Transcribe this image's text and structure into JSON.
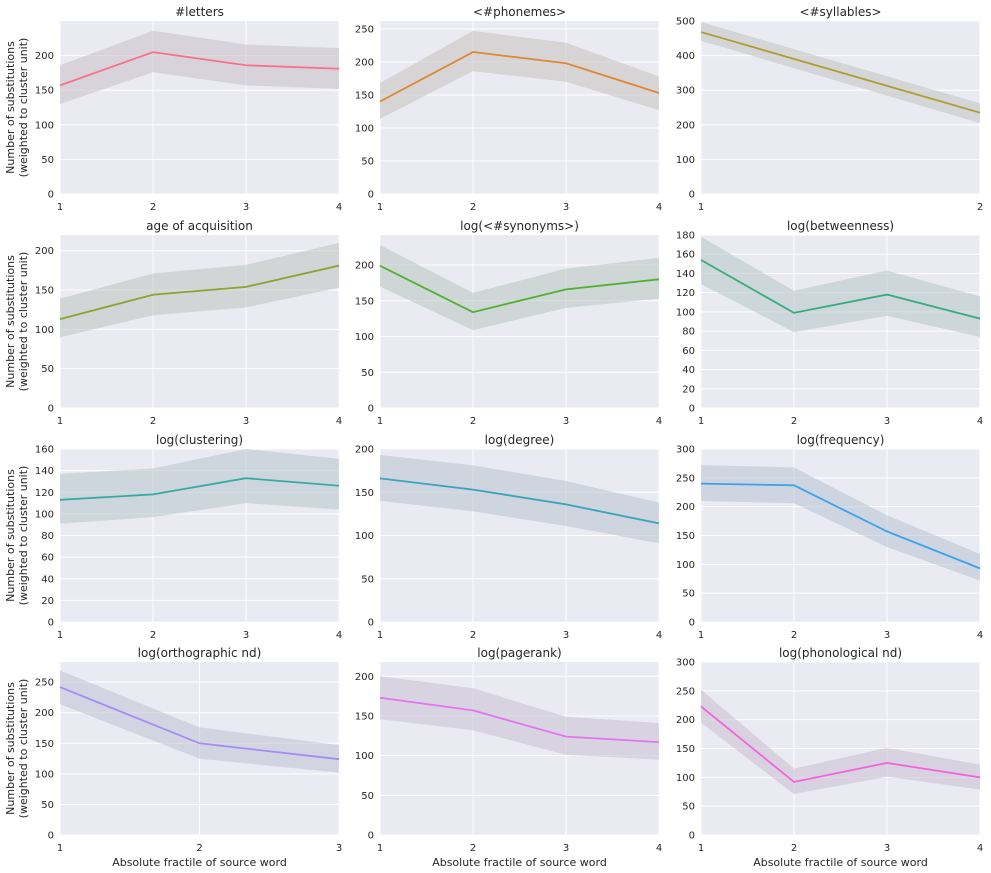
{
  "ylabel_line1": "Number of substitutions",
  "ylabel_line2": "(weighted to cluster unit)",
  "xlabel": "Absolute fractile of source word",
  "colors": {
    "background": "#eaeaf2",
    "grid": "#ffffff",
    "band": "#c9ccd4"
  },
  "chart_data": [
    {
      "type": "line",
      "title": "#letters",
      "color": "#f77189",
      "x": [
        1,
        2,
        3,
        4
      ],
      "y": [
        157,
        205,
        186,
        181
      ],
      "ci_low": [
        130,
        176,
        157,
        152
      ],
      "ci_high": [
        186,
        236,
        216,
        211
      ],
      "ylim": [
        0,
        250
      ],
      "yticks": [
        0,
        50,
        100,
        150,
        200
      ]
    },
    {
      "type": "line",
      "title": "<#phonemes>",
      "color": "#dc8932",
      "x": [
        1,
        2,
        3,
        4
      ],
      "y": [
        140,
        215,
        198,
        153
      ],
      "ci_low": [
        114,
        186,
        170,
        127
      ],
      "ci_high": [
        168,
        247,
        229,
        178
      ],
      "ylim": [
        0,
        262
      ],
      "yticks": [
        0,
        50,
        100,
        150,
        200,
        250
      ]
    },
    {
      "type": "line",
      "title": "<#syllables>",
      "color": "#ae9d31",
      "x": [
        1,
        2
      ],
      "y": [
        468,
        235
      ],
      "ci_low": [
        443,
        205
      ],
      "ci_high": [
        497,
        262
      ],
      "ylim": [
        0,
        500
      ],
      "yticks": [
        0,
        100,
        200,
        300,
        400,
        500
      ]
    },
    {
      "type": "line",
      "title": "age of acquisition",
      "color": "#8ba330",
      "x": [
        1,
        2,
        3,
        4
      ],
      "y": [
        113,
        144,
        154,
        181
      ],
      "ci_low": [
        90,
        118,
        128,
        153
      ],
      "ci_high": [
        139,
        171,
        182,
        210
      ],
      "ylim": [
        0,
        220
      ],
      "yticks": [
        0,
        50,
        100,
        150,
        200
      ]
    },
    {
      "type": "line",
      "title": "log(<#synonyms>)",
      "color": "#50b131",
      "x": [
        1,
        2,
        3,
        4
      ],
      "y": [
        199,
        134,
        166,
        180
      ],
      "ci_low": [
        170,
        109,
        140,
        153
      ],
      "ci_high": [
        228,
        161,
        195,
        210
      ],
      "ylim": [
        0,
        242
      ],
      "yticks": [
        0,
        50,
        100,
        150,
        200
      ]
    },
    {
      "type": "line",
      "title": "log(betweenness)",
      "color": "#35ac7a",
      "x": [
        1,
        2,
        3,
        4
      ],
      "y": [
        154,
        99,
        118,
        93
      ],
      "ci_low": [
        129,
        79,
        96,
        74
      ],
      "ci_high": [
        178,
        122,
        143,
        116
      ],
      "ylim": [
        0,
        180
      ],
      "yticks": [
        0,
        20,
        40,
        60,
        80,
        100,
        120,
        140,
        160,
        180
      ]
    },
    {
      "type": "line",
      "title": "log(clustering)",
      "color": "#38aaa5",
      "x": [
        1,
        2,
        3,
        4
      ],
      "y": [
        113,
        118,
        133,
        126
      ],
      "ci_low": [
        91,
        97,
        110,
        104
      ],
      "ci_high": [
        137,
        142,
        160,
        151
      ],
      "ylim": [
        0,
        160
      ],
      "yticks": [
        0,
        20,
        40,
        60,
        80,
        100,
        120,
        140,
        160
      ]
    },
    {
      "type": "line",
      "title": "log(degree)",
      "color": "#3ba3bc",
      "x": [
        1,
        2,
        3,
        4
      ],
      "y": [
        166,
        153,
        136,
        114
      ],
      "ci_low": [
        140,
        128,
        111,
        91
      ],
      "ci_high": [
        193,
        181,
        163,
        138
      ],
      "ylim": [
        0,
        200
      ],
      "yticks": [
        0,
        50,
        100,
        150,
        200
      ]
    },
    {
      "type": "line",
      "title": "log(frequency)",
      "color": "#3ba3ec",
      "x": [
        1,
        2,
        3,
        4
      ],
      "y": [
        240,
        237,
        157,
        93
      ],
      "ci_low": [
        210,
        206,
        130,
        72
      ],
      "ci_high": [
        272,
        268,
        185,
        118
      ],
      "ylim": [
        0,
        300
      ],
      "yticks": [
        0,
        50,
        100,
        150,
        200,
        250,
        300
      ]
    },
    {
      "type": "line",
      "title": "log(orthographic nd)",
      "color": "#a48cf4",
      "x": [
        1,
        2,
        3
      ],
      "y": [
        242,
        150,
        124
      ],
      "ci_low": [
        214,
        125,
        102
      ],
      "ci_high": [
        269,
        176,
        147
      ],
      "ylim": [
        0,
        283
      ],
      "yticks": [
        0,
        50,
        100,
        150,
        200,
        250
      ]
    },
    {
      "type": "line",
      "title": "log(pagerank)",
      "color": "#e374f0",
      "x": [
        1,
        2,
        3,
        4
      ],
      "y": [
        173,
        157,
        124,
        117
      ],
      "ci_low": [
        146,
        132,
        101,
        95
      ],
      "ci_high": [
        200,
        185,
        149,
        141
      ],
      "ylim": [
        0,
        218
      ],
      "yticks": [
        0,
        50,
        100,
        150,
        200
      ]
    },
    {
      "type": "line",
      "title": "log(phonological nd)",
      "color": "#f461dd",
      "x": [
        1,
        2,
        3,
        4
      ],
      "y": [
        223,
        92,
        125,
        100
      ],
      "ci_low": [
        195,
        71,
        101,
        79
      ],
      "ci_high": [
        252,
        115,
        151,
        122
      ],
      "ylim": [
        0,
        300
      ],
      "yticks": [
        0,
        50,
        100,
        150,
        200,
        250,
        300
      ]
    }
  ]
}
